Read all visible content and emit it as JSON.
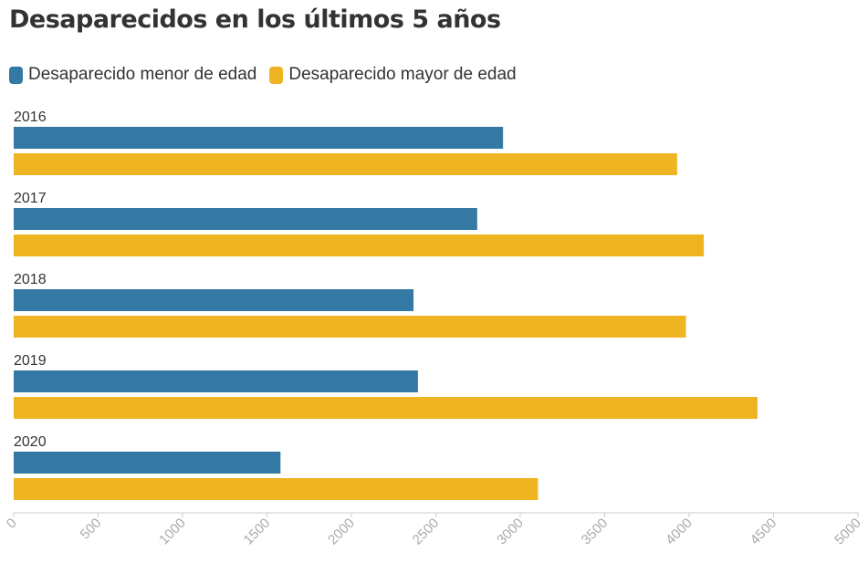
{
  "chart_data": {
    "type": "bar",
    "orientation": "horizontal",
    "title": "Desaparecidos en los últimos 5 años",
    "categories": [
      "2016",
      "2017",
      "2018",
      "2019",
      "2020"
    ],
    "series": [
      {
        "name": "Desaparecido menor de edad",
        "color": "#3479a4",
        "values": [
          2898,
          2745,
          2368,
          2394,
          1580
        ]
      },
      {
        "name": "Desaparecido mayor de edad",
        "color": "#eeb421",
        "values": [
          3929,
          4087,
          3981,
          4405,
          3105
        ]
      }
    ],
    "xlim": [
      0,
      5000
    ],
    "xticks": [
      0,
      500,
      1000,
      1500,
      2000,
      2500,
      3000,
      3500,
      4000,
      4500,
      5000
    ],
    "legend_position": "top-left",
    "grid": false
  }
}
